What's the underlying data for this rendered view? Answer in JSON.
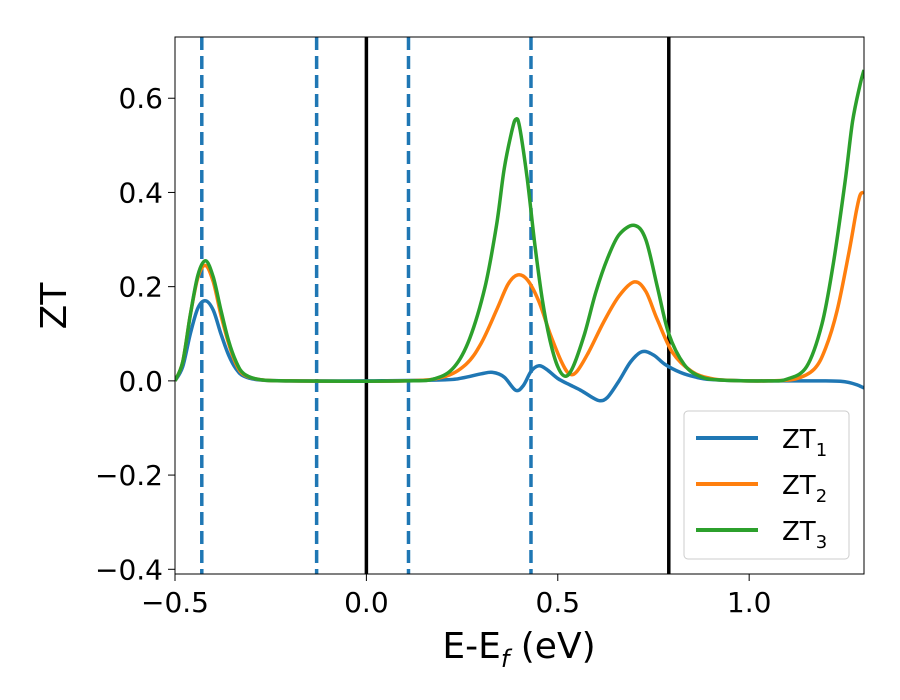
{
  "chart_data": {
    "type": "line",
    "title": "",
    "xlabel": {
      "main": "E-E",
      "sub": "f",
      "suffix": " (eV)"
    },
    "ylabel": "ZT",
    "xlim": [
      -0.5,
      1.3
    ],
    "ylim": [
      -0.41,
      0.73
    ],
    "xticks": [
      -0.5,
      0.0,
      0.5,
      1.0
    ],
    "xtick_labels": [
      "−0.5",
      "0.0",
      "0.5",
      "1.0"
    ],
    "yticks": [
      -0.4,
      -0.2,
      0.0,
      0.2,
      0.4,
      0.6
    ],
    "ytick_labels": [
      "−0.4",
      "−0.2",
      "0.0",
      "0.2",
      "0.4",
      "0.6"
    ],
    "grid": false,
    "legend_position": "lower-right",
    "vlines": [
      {
        "x": -0.43,
        "style": "dashed",
        "color": "#1f77b4"
      },
      {
        "x": -0.13,
        "style": "dashed",
        "color": "#1f77b4"
      },
      {
        "x": 0.0,
        "style": "solid",
        "color": "#000000"
      },
      {
        "x": 0.11,
        "style": "dashed",
        "color": "#1f77b4"
      },
      {
        "x": 0.43,
        "style": "dashed",
        "color": "#1f77b4"
      },
      {
        "x": 0.79,
        "style": "solid",
        "color": "#000000"
      }
    ],
    "series": [
      {
        "name": "ZT",
        "sub": "1",
        "color": "#1f77b4",
        "points": [
          [
            -0.5,
            0.0
          ],
          [
            -0.48,
            0.03
          ],
          [
            -0.46,
            0.1
          ],
          [
            -0.44,
            0.155
          ],
          [
            -0.42,
            0.17
          ],
          [
            -0.4,
            0.15
          ],
          [
            -0.38,
            0.1
          ],
          [
            -0.36,
            0.055
          ],
          [
            -0.34,
            0.025
          ],
          [
            -0.32,
            0.01
          ],
          [
            -0.28,
            0.002
          ],
          [
            -0.2,
            0.0
          ],
          [
            0.0,
            0.0
          ],
          [
            0.2,
            0.002
          ],
          [
            0.25,
            0.006
          ],
          [
            0.3,
            0.015
          ],
          [
            0.33,
            0.018
          ],
          [
            0.36,
            0.008
          ],
          [
            0.39,
            -0.02
          ],
          [
            0.41,
            -0.01
          ],
          [
            0.43,
            0.02
          ],
          [
            0.45,
            0.032
          ],
          [
            0.47,
            0.025
          ],
          [
            0.5,
            0.005
          ],
          [
            0.53,
            -0.008
          ],
          [
            0.56,
            -0.02
          ],
          [
            0.59,
            -0.035
          ],
          [
            0.61,
            -0.042
          ],
          [
            0.63,
            -0.035
          ],
          [
            0.66,
            0.0
          ],
          [
            0.69,
            0.04
          ],
          [
            0.72,
            0.062
          ],
          [
            0.75,
            0.055
          ],
          [
            0.78,
            0.035
          ],
          [
            0.82,
            0.018
          ],
          [
            0.86,
            0.008
          ],
          [
            0.9,
            0.003
          ],
          [
            1.0,
            0.0
          ],
          [
            1.2,
            0.0
          ],
          [
            1.25,
            -0.002
          ],
          [
            1.28,
            -0.008
          ],
          [
            1.3,
            -0.015
          ]
        ]
      },
      {
        "name": "ZT",
        "sub": "2",
        "color": "#ff7f0e",
        "points": [
          [
            -0.5,
            0.0
          ],
          [
            -0.48,
            0.04
          ],
          [
            -0.46,
            0.14
          ],
          [
            -0.44,
            0.22
          ],
          [
            -0.42,
            0.245
          ],
          [
            -0.4,
            0.21
          ],
          [
            -0.38,
            0.14
          ],
          [
            -0.36,
            0.08
          ],
          [
            -0.34,
            0.035
          ],
          [
            -0.32,
            0.013
          ],
          [
            -0.28,
            0.003
          ],
          [
            -0.2,
            0.0
          ],
          [
            0.1,
            0.0
          ],
          [
            0.2,
            0.008
          ],
          [
            0.26,
            0.035
          ],
          [
            0.3,
            0.08
          ],
          [
            0.34,
            0.15
          ],
          [
            0.37,
            0.205
          ],
          [
            0.395,
            0.225
          ],
          [
            0.42,
            0.215
          ],
          [
            0.45,
            0.17
          ],
          [
            0.48,
            0.1
          ],
          [
            0.51,
            0.04
          ],
          [
            0.53,
            0.015
          ],
          [
            0.55,
            0.02
          ],
          [
            0.58,
            0.06
          ],
          [
            0.62,
            0.125
          ],
          [
            0.66,
            0.18
          ],
          [
            0.7,
            0.21
          ],
          [
            0.73,
            0.19
          ],
          [
            0.76,
            0.13
          ],
          [
            0.8,
            0.06
          ],
          [
            0.85,
            0.02
          ],
          [
            0.9,
            0.005
          ],
          [
            0.95,
            0.001
          ],
          [
            1.05,
            0.0
          ],
          [
            1.12,
            0.004
          ],
          [
            1.17,
            0.025
          ],
          [
            1.2,
            0.07
          ],
          [
            1.23,
            0.15
          ],
          [
            1.26,
            0.27
          ],
          [
            1.28,
            0.36
          ],
          [
            1.29,
            0.395
          ],
          [
            1.3,
            0.4
          ]
        ]
      },
      {
        "name": "ZT",
        "sub": "3",
        "color": "#2ca02c",
        "points": [
          [
            -0.5,
            0.0
          ],
          [
            -0.48,
            0.04
          ],
          [
            -0.46,
            0.14
          ],
          [
            -0.44,
            0.225
          ],
          [
            -0.42,
            0.255
          ],
          [
            -0.4,
            0.22
          ],
          [
            -0.38,
            0.15
          ],
          [
            -0.36,
            0.085
          ],
          [
            -0.34,
            0.04
          ],
          [
            -0.32,
            0.015
          ],
          [
            -0.28,
            0.003
          ],
          [
            -0.2,
            0.0
          ],
          [
            0.1,
            0.0
          ],
          [
            0.18,
            0.005
          ],
          [
            0.23,
            0.03
          ],
          [
            0.27,
            0.09
          ],
          [
            0.31,
            0.2
          ],
          [
            0.34,
            0.33
          ],
          [
            0.36,
            0.45
          ],
          [
            0.38,
            0.53
          ],
          [
            0.39,
            0.555
          ],
          [
            0.4,
            0.54
          ],
          [
            0.42,
            0.43
          ],
          [
            0.44,
            0.29
          ],
          [
            0.46,
            0.17
          ],
          [
            0.48,
            0.085
          ],
          [
            0.5,
            0.03
          ],
          [
            0.52,
            0.01
          ],
          [
            0.54,
            0.03
          ],
          [
            0.57,
            0.1
          ],
          [
            0.6,
            0.19
          ],
          [
            0.63,
            0.26
          ],
          [
            0.66,
            0.31
          ],
          [
            0.7,
            0.33
          ],
          [
            0.73,
            0.3
          ],
          [
            0.76,
            0.2
          ],
          [
            0.79,
            0.1
          ],
          [
            0.83,
            0.035
          ],
          [
            0.87,
            0.01
          ],
          [
            0.92,
            0.002
          ],
          [
            1.05,
            0.0
          ],
          [
            1.1,
            0.004
          ],
          [
            1.15,
            0.03
          ],
          [
            1.19,
            0.12
          ],
          [
            1.22,
            0.25
          ],
          [
            1.25,
            0.42
          ],
          [
            1.27,
            0.55
          ],
          [
            1.29,
            0.63
          ],
          [
            1.3,
            0.66
          ]
        ]
      }
    ]
  }
}
